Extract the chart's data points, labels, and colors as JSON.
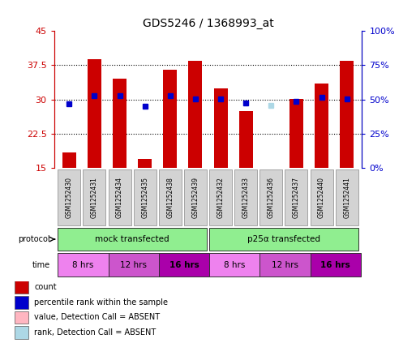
{
  "title": "GDS5246 / 1368993_at",
  "samples": [
    "GSM1252430",
    "GSM1252431",
    "GSM1252434",
    "GSM1252435",
    "GSM1252438",
    "GSM1252439",
    "GSM1252432",
    "GSM1252433",
    "GSM1252436",
    "GSM1252437",
    "GSM1252440",
    "GSM1252441"
  ],
  "bar_heights": [
    18.5,
    38.8,
    34.5,
    17.0,
    36.5,
    38.5,
    32.5,
    27.5,
    15.0,
    30.2,
    33.5,
    38.5
  ],
  "bar_colors": [
    "#CC0000",
    "#CC0000",
    "#CC0000",
    "#CC0000",
    "#CC0000",
    "#CC0000",
    "#CC0000",
    "#CC0000",
    "#FFB6C1",
    "#CC0000",
    "#CC0000",
    "#CC0000"
  ],
  "rank_values": [
    29.0,
    30.8,
    30.8,
    28.5,
    30.8,
    30.2,
    30.2,
    29.2,
    28.7,
    29.6,
    30.5,
    30.2
  ],
  "rank_colors": [
    "#0000CC",
    "#0000CC",
    "#0000CC",
    "#0000CC",
    "#0000CC",
    "#0000CC",
    "#0000CC",
    "#0000CC",
    "#ADD8E6",
    "#0000CC",
    "#0000CC",
    "#0000CC"
  ],
  "ylim_left": [
    15,
    45
  ],
  "ylim_right": [
    0,
    100
  ],
  "yticks_left": [
    15,
    22.5,
    30,
    37.5,
    45
  ],
  "yticks_right": [
    0,
    25,
    50,
    75,
    100
  ],
  "ytick_labels_left": [
    "15",
    "22.5",
    "30",
    "37.5",
    "45"
  ],
  "ytick_labels_right": [
    "0%",
    "25%",
    "50%",
    "75%",
    "100%"
  ],
  "bar_width": 0.55,
  "protocol_labels": [
    "mock transfected",
    "p25α transfected"
  ],
  "protocol_color": "#90EE90",
  "time_labels": [
    "8 hrs",
    "12 hrs",
    "16 hrs",
    "8 hrs",
    "12 hrs",
    "16 hrs"
  ],
  "time_colors": [
    "#EE82EE",
    "#CC55CC",
    "#AA00AA",
    "#EE82EE",
    "#CC55CC",
    "#AA00AA"
  ],
  "time_bold": [
    false,
    false,
    true,
    false,
    false,
    true
  ],
  "legend_items": [
    {
      "label": "count",
      "color": "#CC0000"
    },
    {
      "label": "percentile rank within the sample",
      "color": "#0000CC"
    },
    {
      "label": "value, Detection Call = ABSENT",
      "color": "#FFB6C1"
    },
    {
      "label": "rank, Detection Call = ABSENT",
      "color": "#ADD8E6"
    }
  ],
  "grid_yticks": [
    22.5,
    30,
    37.5
  ],
  "left_yaxis_color": "#CC0000",
  "right_yaxis_color": "#0000CC",
  "sample_bg": "#D3D3D3"
}
